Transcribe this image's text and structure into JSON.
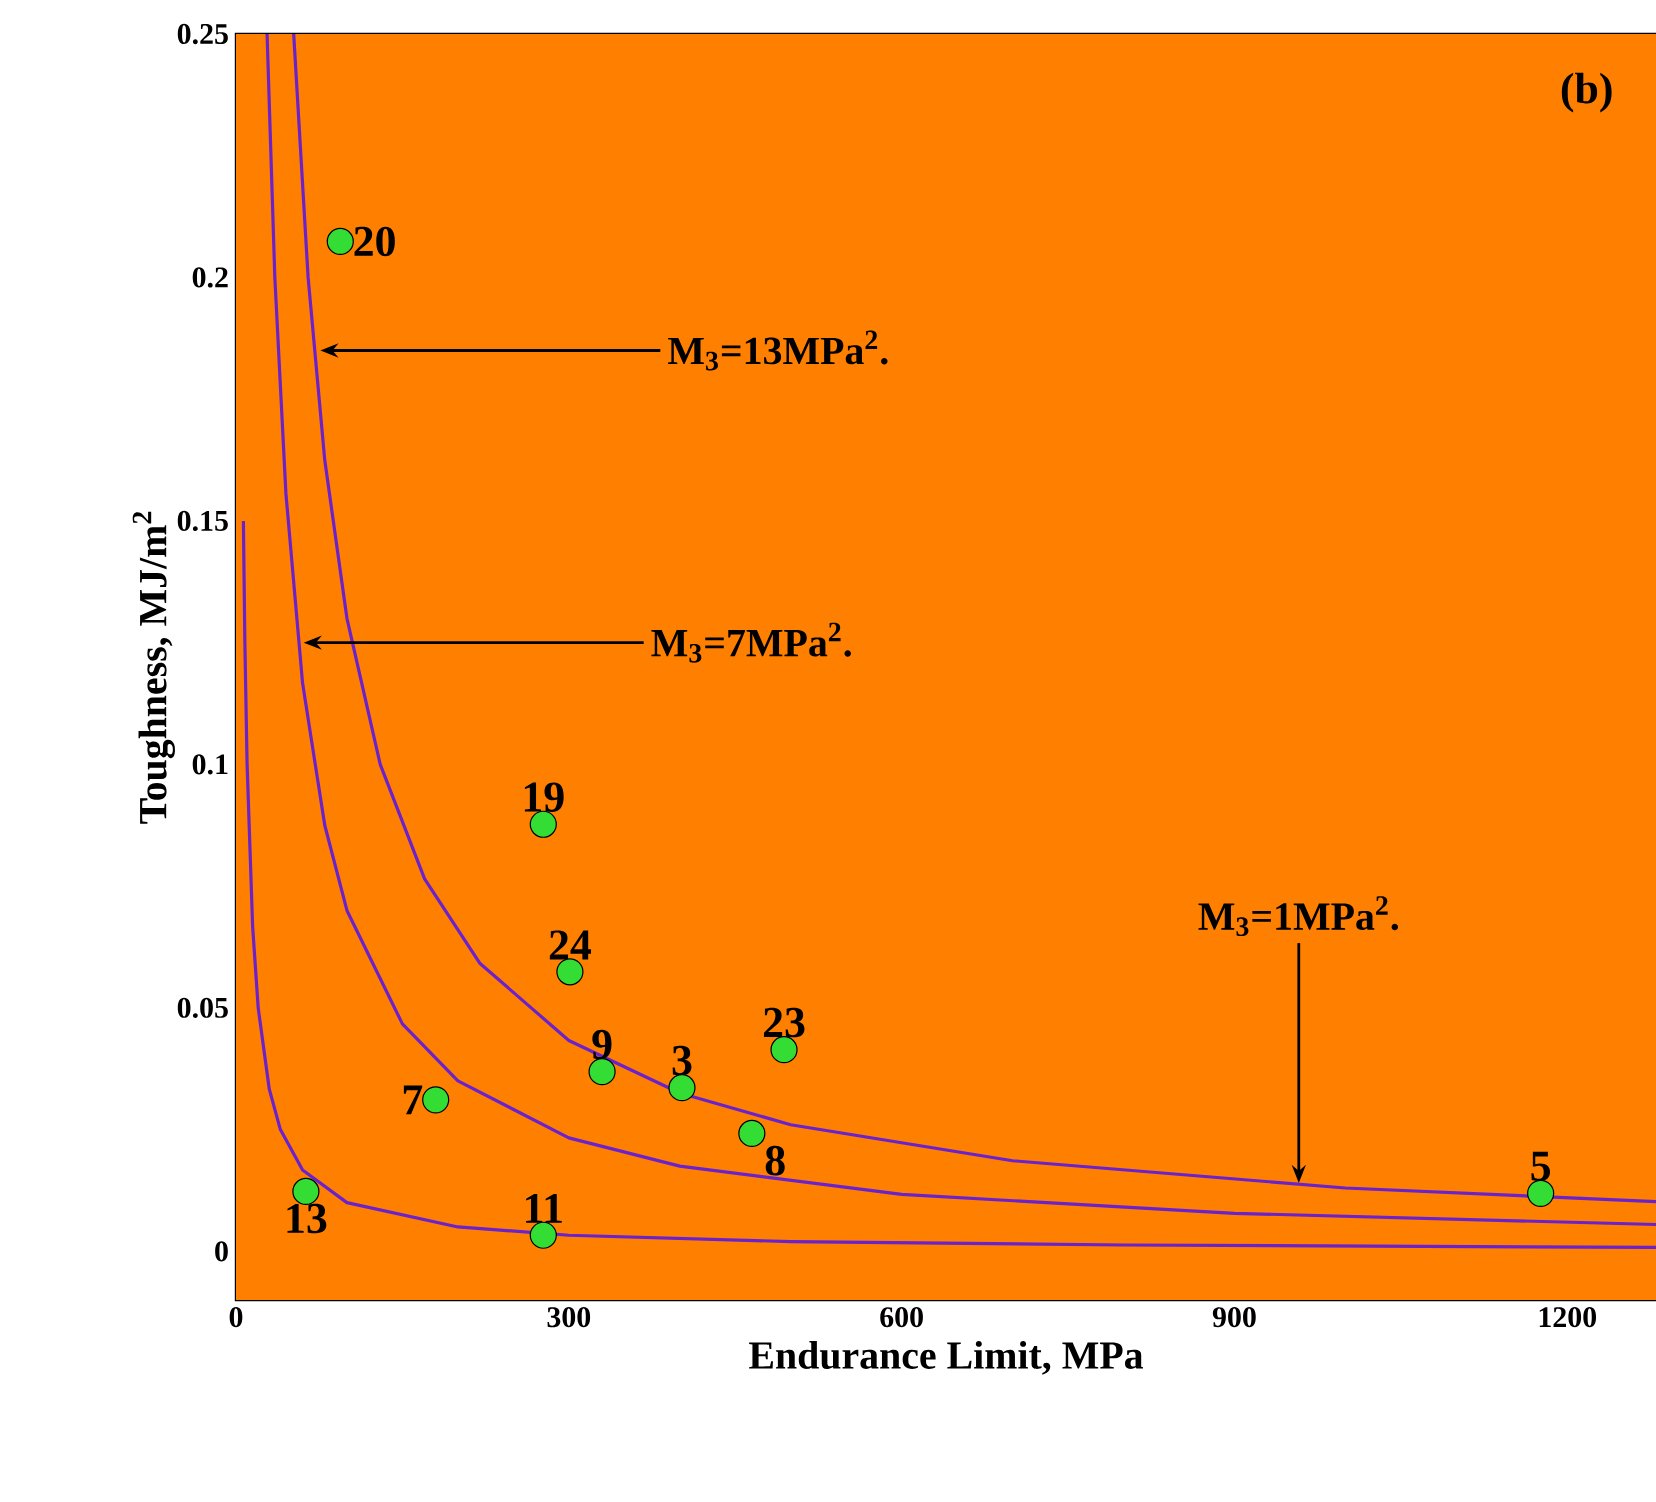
{
  "chart_data": {
    "type": "scatter",
    "xlabel": "Endurance Limit, MPa",
    "ylabel": "Toughness, MJ/m$^{2}$",
    "xlim": [
      0,
      1280
    ],
    "ylim": [
      -0.01,
      0.25
    ],
    "xticks": [
      0,
      300,
      600,
      900,
      1200
    ],
    "yticks": [
      0,
      0.05,
      0.1,
      0.15,
      0.2,
      0.25
    ],
    "series": [
      {
        "type": "line",
        "color": "#6a22cc",
        "marker": "none",
        "x": [
          6.67,
          8,
          10,
          15,
          20,
          30,
          40,
          60,
          100,
          200,
          300,
          500,
          800,
          1280
        ],
        "values": [
          0.15,
          0.125,
          0.1,
          0.0667,
          0.05,
          0.0333,
          0.025,
          0.0167,
          0.01,
          0.005,
          0.0033,
          0.002,
          0.0013,
          0.0008
        ]
      },
      {
        "type": "line",
        "color": "#6a22cc",
        "marker": "none",
        "x": [
          28,
          35,
          45,
          60,
          80,
          100,
          150,
          200,
          300,
          400,
          600,
          900,
          1280
        ],
        "values": [
          0.25,
          0.2,
          0.1556,
          0.1167,
          0.0875,
          0.07,
          0.0467,
          0.035,
          0.0233,
          0.0175,
          0.0117,
          0.0078,
          0.0055
        ]
      },
      {
        "type": "line",
        "color": "#6a22cc",
        "marker": "none",
        "x": [
          52,
          65,
          80,
          100,
          130,
          170,
          220,
          300,
          400,
          500,
          700,
          1000,
          1280
        ],
        "values": [
          0.25,
          0.2,
          0.1625,
          0.13,
          0.1,
          0.0765,
          0.0591,
          0.0433,
          0.0325,
          0.026,
          0.0186,
          0.013,
          0.0102
        ]
      },
      {
        "type": "scatter",
        "color": "#33dd33",
        "marker": "circle",
        "x": [
          94,
          277,
          301,
          330,
          402,
          494,
          465,
          180,
          63,
          277,
          1176
        ],
        "values": [
          0.2074,
          0.0877,
          0.0574,
          0.0369,
          0.0336,
          0.0414,
          0.0242,
          0.0311,
          0.0123,
          0.0033,
          0.0119
        ]
      }
    ],
    "annotations": [
      "(b)",
      {
        "text": "M$_{3}$=13MPa$^{2}$.",
        "x": 76,
        "y": 0.185
      },
      {
        "text": "M$_{3}$=7MPa$^{2}$.",
        "x": 61,
        "y": 0.125
      },
      {
        "text": "M$_{3}$=1MPa$^{2}$.",
        "x": 958,
        "y": 0.014
      },
      {
        "text": "20",
        "x": 94,
        "y": 0.2074
      },
      {
        "text": "19",
        "x": 277,
        "y": 0.0877
      },
      {
        "text": "24",
        "x": 301,
        "y": 0.0574
      },
      {
        "text": "9",
        "x": 330,
        "y": 0.0369
      },
      {
        "text": "3",
        "x": 402,
        "y": 0.0336
      },
      {
        "text": "23",
        "x": 494,
        "y": 0.0414
      },
      {
        "text": "8",
        "x": 465,
        "y": 0.0242
      },
      {
        "text": "7",
        "x": 180,
        "y": 0.0311
      },
      {
        "text": "13",
        "x": 63,
        "y": 0.0123
      },
      {
        "text": "11",
        "x": 277,
        "y": 0.0033
      },
      {
        "text": "5",
        "x": 1176,
        "y": 0.0119
      }
    ]
  }
}
